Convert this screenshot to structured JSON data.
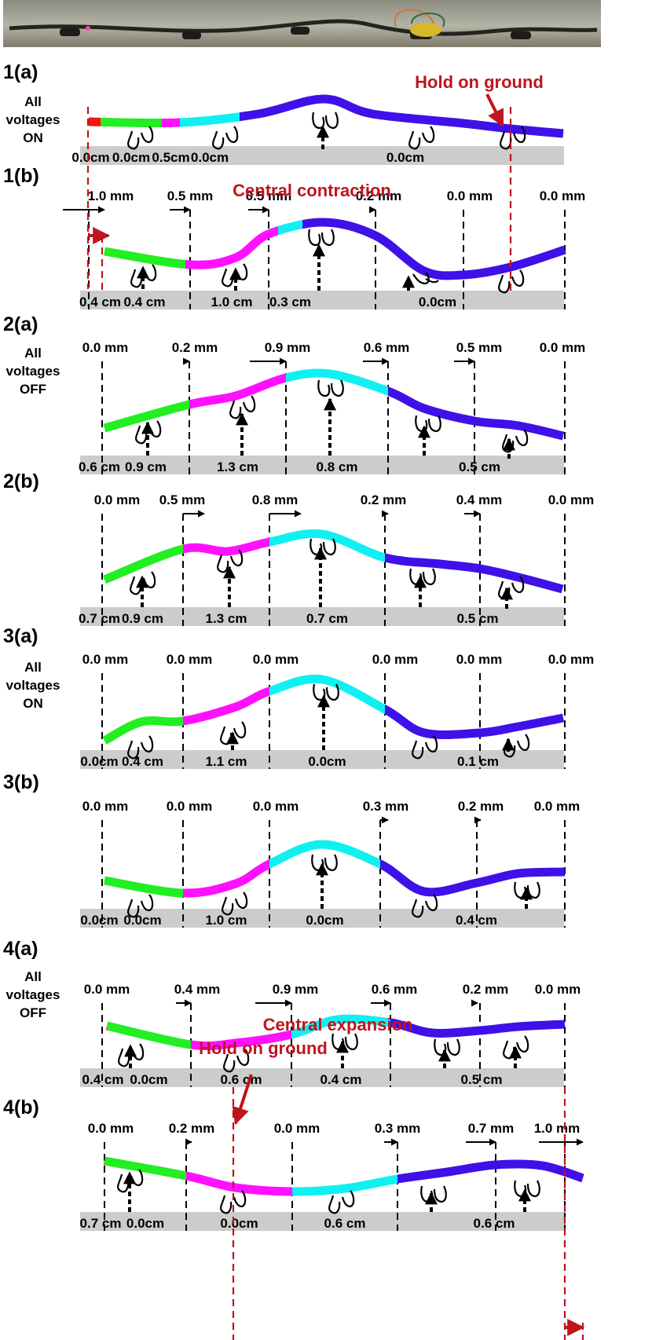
{
  "annotations": {
    "hold_on_ground": "Hold on ground",
    "central_contraction": "Central contraction",
    "central_expansion": "Central expansion"
  },
  "colors": {
    "seg": [
      "#ff1010",
      "#22ee22",
      "#ff10ff",
      "#10f0f0",
      "#4010e8"
    ],
    "ground": "#cccccc",
    "red": "#c0141e"
  },
  "panels": [
    {
      "id": "1(a)",
      "side": [
        "All",
        "voltages",
        "ON"
      ],
      "disp": [],
      "heights": [
        "0.0cm",
        "0.0cm",
        "0.5cm",
        "0.0cm",
        "0.0cm"
      ]
    },
    {
      "id": "1(b)",
      "side": [],
      "disp": [
        "1.0 mm",
        "0.5 mm",
        "0.5 mm",
        "0.2 mm",
        "0.0 mm",
        "0.0 mm"
      ],
      "heights": [
        "0.4 cm",
        "0.4 cm",
        "1.0 cm",
        "0.3 cm",
        "0.0cm"
      ]
    },
    {
      "id": "2(a)",
      "side": [
        "All",
        "voltages",
        "OFF"
      ],
      "disp": [
        "0.0 mm",
        "0.2 mm",
        "0.9 mm",
        "0.6 mm",
        "0.5 mm",
        "0.0 mm"
      ],
      "heights": [
        "0.6 cm",
        "0.9 cm",
        "1.3 cm",
        "0.8 cm",
        "0.5 cm"
      ]
    },
    {
      "id": "2(b)",
      "side": [],
      "disp": [
        "0.0 mm",
        "0.5 mm",
        "0.8 mm",
        "0.2 mm",
        "0.4 mm",
        "0.0 mm"
      ],
      "heights": [
        "0.7 cm",
        "0.9 cm",
        "1.3 cm",
        "0.7 cm",
        "0.5 cm"
      ]
    },
    {
      "id": "3(a)",
      "side": [
        "All",
        "voltages",
        "ON"
      ],
      "disp": [
        "0.0 mm",
        "0.0 mm",
        "0.0 mm",
        "0.0 mm",
        "0.0 mm",
        "0.0 mm"
      ],
      "heights": [
        "0.0cm",
        "0.4 cm",
        "1.1 cm",
        "0.0cm",
        "0.1 cm"
      ]
    },
    {
      "id": "3(b)",
      "side": [],
      "disp": [
        "0.0 mm",
        "0.0 mm",
        "0.0 mm",
        "0.3 mm",
        "0.2 mm",
        "0.0 mm"
      ],
      "heights": [
        "0.0cm",
        "0.0cm",
        "1.0 cm",
        "0.0cm",
        "0.4 cm"
      ]
    },
    {
      "id": "4(a)",
      "side": [
        "All",
        "voltages",
        "OFF"
      ],
      "disp": [
        "0.0 mm",
        "0.4 mm",
        "0.9 mm",
        "0.6 mm",
        "0.2 mm",
        "0.0 mm"
      ],
      "heights": [
        "0.4 cm",
        "0.0cm",
        "0.6 cm",
        "0.4 cm",
        "0.5 cm"
      ]
    },
    {
      "id": "4(b)",
      "side": [],
      "disp": [
        "0.0 mm",
        "0.2 mm",
        "0.0 mm",
        "0.3 mm",
        "0.7 mm",
        "1.0 mm"
      ],
      "heights": [
        "0.7 cm",
        "0.0cm",
        "0.0cm",
        "0.6 cm",
        "0.6 cm"
      ]
    }
  ]
}
